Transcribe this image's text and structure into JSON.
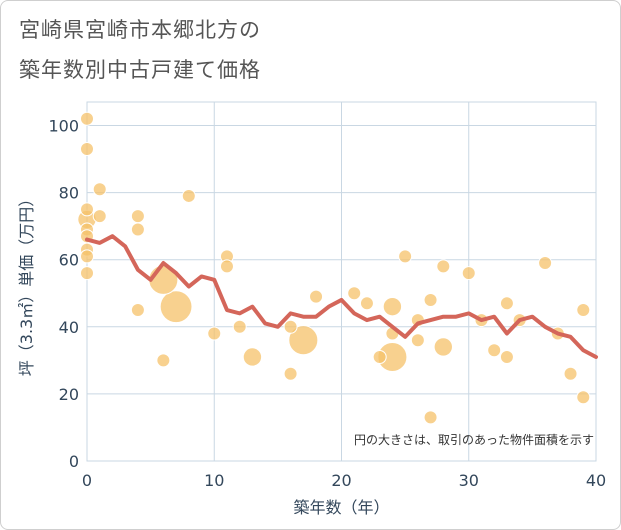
{
  "title_lines": [
    "宮崎県宮崎市本郷北方の",
    "築年数別中古戸建て価格"
  ],
  "colors": {
    "bubble": "#f5c169",
    "bubble_stroke": "#ffffff",
    "line": "#d4665a",
    "grid": "#c9d7e3",
    "plot_bg": "#ffffff",
    "text": "#33475b"
  },
  "chart_data": {
    "type": "scatter",
    "title": "宮崎県宮崎市本郷北方の 築年数別中古戸建て価格",
    "xlabel": "築年数（年）",
    "ylabel": "坪（3.3㎡）単価（万円）",
    "xlim": [
      0,
      40
    ],
    "ylim": [
      0,
      107
    ],
    "xticks": [
      0,
      10,
      20,
      30,
      40
    ],
    "yticks": [
      0,
      20,
      40,
      60,
      80,
      100
    ],
    "grid": true,
    "note": "円の大きさは、取引のあった物件面積を示す",
    "bubbles": [
      {
        "x": 0,
        "y": 102,
        "size": 1
      },
      {
        "x": 0,
        "y": 93,
        "size": 1
      },
      {
        "x": 0,
        "y": 75,
        "size": 1
      },
      {
        "x": 0,
        "y": 72,
        "size": 2
      },
      {
        "x": 0,
        "y": 69,
        "size": 1
      },
      {
        "x": 0,
        "y": 67,
        "size": 1
      },
      {
        "x": 0,
        "y": 63,
        "size": 1
      },
      {
        "x": 0,
        "y": 61,
        "size": 1
      },
      {
        "x": 0,
        "y": 56,
        "size": 1
      },
      {
        "x": 1,
        "y": 81,
        "size": 1
      },
      {
        "x": 1,
        "y": 73,
        "size": 1
      },
      {
        "x": 4,
        "y": 73,
        "size": 1
      },
      {
        "x": 4,
        "y": 69,
        "size": 1
      },
      {
        "x": 4,
        "y": 45,
        "size": 1
      },
      {
        "x": 6,
        "y": 54,
        "size": 5
      },
      {
        "x": 6,
        "y": 30,
        "size": 1
      },
      {
        "x": 7,
        "y": 46,
        "size": 6
      },
      {
        "x": 8,
        "y": 79,
        "size": 1
      },
      {
        "x": 10,
        "y": 38,
        "size": 1
      },
      {
        "x": 11,
        "y": 61,
        "size": 1
      },
      {
        "x": 11,
        "y": 58,
        "size": 1
      },
      {
        "x": 12,
        "y": 40,
        "size": 1
      },
      {
        "x": 13,
        "y": 31,
        "size": 2
      },
      {
        "x": 16,
        "y": 40,
        "size": 1
      },
      {
        "x": 16,
        "y": 26,
        "size": 1
      },
      {
        "x": 17,
        "y": 36,
        "size": 5
      },
      {
        "x": 18,
        "y": 49,
        "size": 1
      },
      {
        "x": 21,
        "y": 50,
        "size": 1
      },
      {
        "x": 22,
        "y": 47,
        "size": 1
      },
      {
        "x": 23,
        "y": 31,
        "size": 1
      },
      {
        "x": 24,
        "y": 46,
        "size": 2
      },
      {
        "x": 24,
        "y": 38,
        "size": 1
      },
      {
        "x": 24,
        "y": 31,
        "size": 5
      },
      {
        "x": 25,
        "y": 61,
        "size": 1
      },
      {
        "x": 26,
        "y": 42,
        "size": 1
      },
      {
        "x": 26,
        "y": 36,
        "size": 1
      },
      {
        "x": 27,
        "y": 48,
        "size": 1
      },
      {
        "x": 27,
        "y": 13,
        "size": 1
      },
      {
        "x": 28,
        "y": 58,
        "size": 1
      },
      {
        "x": 28,
        "y": 34,
        "size": 2
      },
      {
        "x": 30,
        "y": 56,
        "size": 1
      },
      {
        "x": 31,
        "y": 42,
        "size": 1
      },
      {
        "x": 32,
        "y": 33,
        "size": 1
      },
      {
        "x": 33,
        "y": 47,
        "size": 1
      },
      {
        "x": 33,
        "y": 31,
        "size": 1
      },
      {
        "x": 34,
        "y": 42,
        "size": 1
      },
      {
        "x": 36,
        "y": 59,
        "size": 1
      },
      {
        "x": 37,
        "y": 38,
        "size": 1
      },
      {
        "x": 38,
        "y": 26,
        "size": 1
      },
      {
        "x": 39,
        "y": 45,
        "size": 1
      },
      {
        "x": 39,
        "y": 19,
        "size": 1
      }
    ],
    "line": {
      "x": [
        0,
        1,
        2,
        3,
        4,
        5,
        6,
        7,
        8,
        9,
        10,
        11,
        12,
        13,
        14,
        15,
        16,
        17,
        18,
        19,
        20,
        21,
        22,
        23,
        24,
        25,
        26,
        27,
        28,
        29,
        30,
        31,
        32,
        33,
        34,
        35,
        36,
        37,
        38,
        39,
        40
      ],
      "y": [
        66,
        65,
        67,
        64,
        57,
        54,
        59,
        56,
        52,
        55,
        54,
        45,
        44,
        46,
        41,
        40,
        44,
        43,
        43,
        46,
        48,
        44,
        42,
        43,
        40,
        37,
        41,
        42,
        43,
        43,
        44,
        42,
        43,
        38,
        42,
        43,
        40,
        38,
        37,
        33,
        31
      ]
    }
  }
}
